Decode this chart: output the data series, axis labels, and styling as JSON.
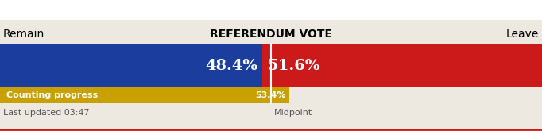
{
  "title": "REFERENDUM VOTE",
  "remain_label": "Remain",
  "leave_label": "Leave",
  "remain_pct": 48.4,
  "leave_pct": 51.6,
  "remain_color": "#1a3d9e",
  "leave_color": "#cc1a1a",
  "progress_pct": 53.4,
  "progress_color": "#c8a000",
  "progress_label": "Counting progress",
  "midpoint_label": "Midpoint",
  "last_updated": "Last updated 03:47",
  "bg_color": "#ede8e0",
  "top_bg_color": "#ffffff",
  "remain_text_color": "#ffffff",
  "leave_text_color": "#ffffff",
  "progress_text_color": "#ffffff",
  "title_fontsize": 10,
  "label_fontsize": 10,
  "pct_fontsize": 14,
  "small_fontsize": 8
}
